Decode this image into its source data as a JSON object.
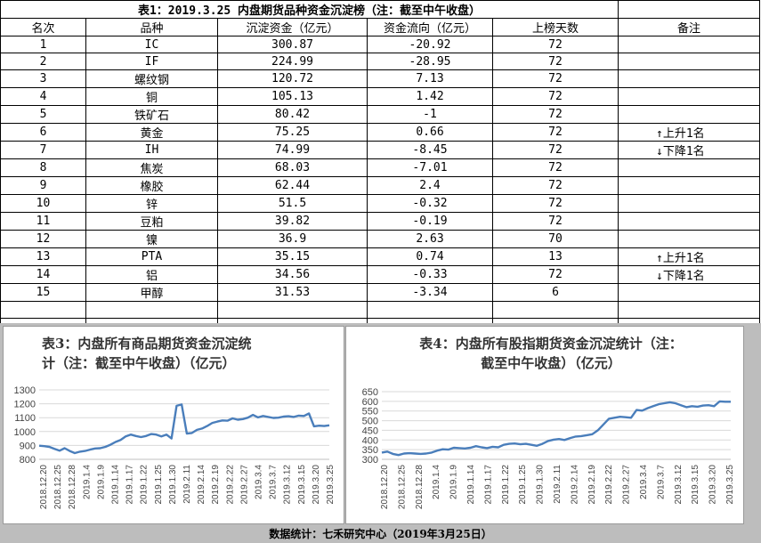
{
  "table": {
    "title": "表1：2019.3.25 内盘期货品种资金沉淀榜（注：截至中午收盘）",
    "headers": [
      "名次",
      "品种",
      "沉淀资金（亿元）",
      "资金流向（亿元）",
      "上榜天数",
      "备注"
    ],
    "rows": [
      {
        "rank": "1",
        "name": "IC",
        "capital": "300.87",
        "flow": "-20.92",
        "days": "72",
        "note": ""
      },
      {
        "rank": "2",
        "name": "IF",
        "capital": "224.99",
        "flow": "-28.95",
        "days": "72",
        "note": ""
      },
      {
        "rank": "3",
        "name": "螺纹钢",
        "capital": "120.72",
        "flow": "7.13",
        "days": "72",
        "note": ""
      },
      {
        "rank": "4",
        "name": "铜",
        "capital": "105.13",
        "flow": "1.42",
        "days": "72",
        "note": ""
      },
      {
        "rank": "5",
        "name": "铁矿石",
        "capital": "80.42",
        "flow": "-1",
        "days": "72",
        "note": ""
      },
      {
        "rank": "6",
        "name": "黄金",
        "capital": "75.25",
        "flow": "0.66",
        "days": "72",
        "note": "↑上升1名"
      },
      {
        "rank": "7",
        "name": "IH",
        "capital": "74.99",
        "flow": "-8.45",
        "days": "72",
        "note": "↓下降1名"
      },
      {
        "rank": "8",
        "name": "焦炭",
        "capital": "68.03",
        "flow": "-7.01",
        "days": "72",
        "note": ""
      },
      {
        "rank": "9",
        "name": "橡胶",
        "capital": "62.44",
        "flow": "2.4",
        "days": "72",
        "note": ""
      },
      {
        "rank": "10",
        "name": "锌",
        "capital": "51.5",
        "flow": "-0.32",
        "days": "72",
        "note": ""
      },
      {
        "rank": "11",
        "name": "豆粕",
        "capital": "39.82",
        "flow": "-0.19",
        "days": "72",
        "note": ""
      },
      {
        "rank": "12",
        "name": "镍",
        "capital": "36.9",
        "flow": "2.63",
        "days": "70",
        "note": ""
      },
      {
        "rank": "13",
        "name": "PTA",
        "capital": "35.15",
        "flow": "0.74",
        "days": "13",
        "note": "↑上升1名"
      },
      {
        "rank": "14",
        "name": "铝",
        "capital": "34.56",
        "flow": "-0.33",
        "days": "72",
        "note": "↓下降1名"
      },
      {
        "rank": "15",
        "name": "甲醇",
        "capital": "31.53",
        "flow": "-3.34",
        "days": "6",
        "note": ""
      }
    ]
  },
  "chart3": {
    "title_line1": "表3：内盘所有商品期货资金沉淀统",
    "title_line2": "计（注：截至中午收盘）（亿元）"
  },
  "chart4": {
    "title_line1": "表4：内盘所有股指期货资金沉淀统计（注：",
    "title_line2": "截至中午收盘）（亿元）"
  },
  "footer": "数据统计：七禾研究中心（2019年3月25日）",
  "chart_data": [
    {
      "type": "line",
      "title": "表3：内盘所有商品期货资金沉淀统计（注：截至中午收盘）（亿元）",
      "ylim": [
        800,
        1300
      ],
      "yticks": [
        800,
        900,
        1000,
        1100,
        1200,
        1300
      ],
      "xticklabels": [
        "2018.12.20",
        "2018.12.25",
        "2018.12.28",
        "2019.1.4",
        "2019.1.9",
        "2019.1.14",
        "2019.1.17",
        "2019.1.22",
        "2019.1.25",
        "2019.1.30",
        "2019.2.11",
        "2019.2.14",
        "2019.2.19",
        "2019.2.22",
        "2019.2.27",
        "2019.3.4",
        "2019.3.7",
        "2019.3.12",
        "2019.3.15",
        "2019.3.20",
        "2019.3.25"
      ],
      "grid": "horizontal",
      "legend": "none",
      "color": "#4a7ebb",
      "values": [
        898,
        895,
        890,
        875,
        862,
        880,
        860,
        845,
        855,
        860,
        870,
        878,
        880,
        890,
        905,
        925,
        940,
        965,
        978,
        968,
        960,
        968,
        982,
        978,
        965,
        978,
        950,
        1185,
        1195,
        985,
        990,
        1012,
        1022,
        1040,
        1062,
        1072,
        1080,
        1078,
        1095,
        1085,
        1090,
        1100,
        1120,
        1102,
        1112,
        1105,
        1098,
        1100,
        1108,
        1110,
        1105,
        1115,
        1112,
        1130,
        1038,
        1042,
        1040,
        1045
      ]
    },
    {
      "type": "line",
      "title": "表4：内盘所有股指期货资金沉淀统计（注：截至中午收盘）（亿元）",
      "ylim": [
        300,
        650
      ],
      "yticks": [
        300,
        350,
        400,
        450,
        500,
        550,
        600,
        650
      ],
      "xticklabels": [
        "2018.12.20",
        "2018.12.25",
        "2018.12.28",
        "2019.1.4",
        "2019.1.9",
        "2019.1.14",
        "2019.1.17",
        "2019.1.22",
        "2019.1.25",
        "2019.1.30",
        "2019.2.11",
        "2019.2.14",
        "2019.2.19",
        "2019.2.22",
        "2019.2.27",
        "2019.3.4",
        "2019.3.7",
        "2019.3.12",
        "2019.3.15",
        "2019.3.20",
        "2019.3.25"
      ],
      "grid": "horizontal",
      "legend": "none",
      "color": "#4a7ebb",
      "values": [
        335,
        340,
        328,
        322,
        330,
        332,
        330,
        328,
        330,
        335,
        345,
        352,
        350,
        360,
        358,
        356,
        360,
        368,
        362,
        358,
        365,
        362,
        375,
        380,
        382,
        378,
        380,
        375,
        370,
        380,
        395,
        402,
        405,
        400,
        410,
        418,
        420,
        425,
        430,
        450,
        480,
        510,
        515,
        520,
        518,
        515,
        555,
        552,
        565,
        575,
        585,
        590,
        595,
        590,
        580,
        570,
        575,
        572,
        578,
        580,
        575,
        600,
        598,
        598
      ]
    }
  ]
}
